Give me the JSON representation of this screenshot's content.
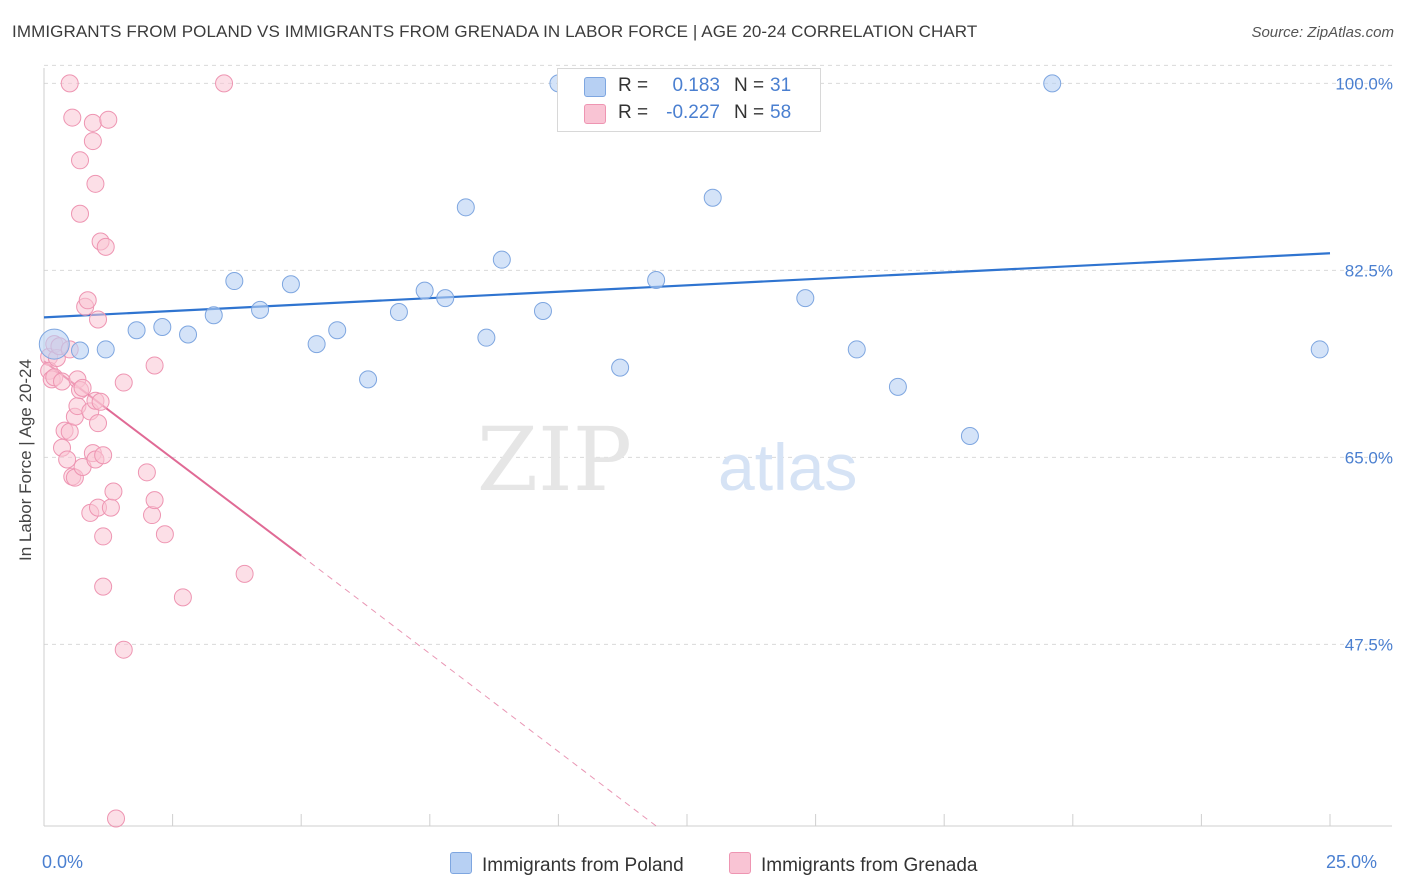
{
  "title": "IMMIGRANTS FROM POLAND VS IMMIGRANTS FROM GRENADA IN LABOR FORCE | AGE 20-24 CORRELATION CHART",
  "source": "Source: ZipAtlas.com",
  "watermark": {
    "zip": "ZIP",
    "atlas": "atlas"
  },
  "colors": {
    "poland_fill": "#b7d0f3",
    "poland_stroke": "#7ea6e0",
    "poland_line": "#2f74d0",
    "grenada_fill": "#f9c4d4",
    "grenada_stroke": "#ee95b2",
    "grenada_line": "#e06a95",
    "tick_text": "#4a7fd0",
    "grid": "#d9d9d9"
  },
  "legend": {
    "rows": [
      {
        "r_label": "R =",
        "r_value": "0.183",
        "n_label": "N =",
        "n_value": "31"
      },
      {
        "r_label": "R =",
        "r_value": "-0.227",
        "n_label": "N =",
        "n_value": "58"
      }
    ]
  },
  "bottom_legend": {
    "poland": "Immigrants from Poland",
    "grenada": "Immigrants from Grenada"
  },
  "x_axis": {
    "min_label": "0.0%",
    "max_label": "25.0%"
  },
  "chart_data": {
    "type": "scatter",
    "title": "IMMIGRANTS FROM POLAND VS IMMIGRANTS FROM GRENADA IN LABOR FORCE | AGE 20-24 CORRELATION CHART",
    "xlabel": "",
    "ylabel": "In Labor Force | Age 20-24",
    "xlim": [
      0,
      25
    ],
    "ylim": [
      30.5,
      102
    ],
    "y_ticks": [
      47.5,
      65.0,
      82.5,
      100.0
    ],
    "y_tick_labels": [
      "47.5%",
      "65.0%",
      "82.5%",
      "100.0%"
    ],
    "x_tick_labels": [
      "0.0%",
      "25.0%"
    ],
    "grid": true,
    "legend_placement": "top-center",
    "series": [
      {
        "name": "Immigrants from Poland",
        "R": 0.183,
        "N": 31,
        "trend": [
          [
            0,
            78.1
          ],
          [
            25,
            84.1
          ]
        ],
        "points": [
          [
            0.2,
            75.6
          ],
          [
            0.7,
            75.0
          ],
          [
            1.2,
            75.1
          ],
          [
            1.8,
            76.9
          ],
          [
            2.3,
            77.2
          ],
          [
            2.8,
            76.5
          ],
          [
            3.3,
            78.3
          ],
          [
            3.7,
            81.5
          ],
          [
            4.2,
            78.8
          ],
          [
            4.8,
            81.2
          ],
          [
            5.3,
            75.6
          ],
          [
            5.7,
            76.9
          ],
          [
            6.3,
            72.3
          ],
          [
            6.9,
            78.6
          ],
          [
            7.4,
            80.6
          ],
          [
            7.8,
            79.9
          ],
          [
            8.2,
            88.4
          ],
          [
            8.6,
            76.2
          ],
          [
            8.9,
            83.5
          ],
          [
            9.7,
            78.7
          ],
          [
            10.0,
            100.0
          ],
          [
            11.2,
            73.4
          ],
          [
            11.9,
            81.6
          ],
          [
            12.0,
            100.0
          ],
          [
            13.0,
            89.3
          ],
          [
            14.8,
            79.9
          ],
          [
            15.8,
            75.1
          ],
          [
            16.6,
            71.6
          ],
          [
            18.0,
            67.0
          ],
          [
            19.6,
            100.0
          ],
          [
            24.8,
            75.1
          ]
        ]
      },
      {
        "name": "Immigrants from Grenada",
        "R": -0.227,
        "N": 58,
        "trend_solid": [
          [
            0,
            74.0
          ],
          [
            5.0,
            55.8
          ]
        ],
        "trend_dashed": [
          [
            5.0,
            55.8
          ],
          [
            11.9,
            30.5
          ]
        ],
        "points": [
          [
            0.1,
            74.4
          ],
          [
            0.1,
            73.1
          ],
          [
            0.15,
            72.3
          ],
          [
            0.2,
            75.6
          ],
          [
            0.2,
            72.5
          ],
          [
            0.25,
            74.3
          ],
          [
            0.3,
            75.4
          ],
          [
            0.35,
            72.1
          ],
          [
            0.35,
            65.9
          ],
          [
            0.4,
            67.5
          ],
          [
            0.45,
            64.8
          ],
          [
            0.5,
            75.1
          ],
          [
            0.5,
            67.4
          ],
          [
            0.55,
            63.2
          ],
          [
            0.6,
            63.1
          ],
          [
            0.6,
            68.8
          ],
          [
            0.65,
            72.3
          ],
          [
            0.65,
            69.8
          ],
          [
            0.7,
            71.3
          ],
          [
            0.75,
            71.5
          ],
          [
            0.75,
            64.1
          ],
          [
            0.8,
            79.1
          ],
          [
            0.85,
            79.7
          ],
          [
            0.9,
            69.3
          ],
          [
            0.9,
            59.8
          ],
          [
            0.5,
            100.0
          ],
          [
            0.55,
            96.8
          ],
          [
            0.7,
            92.8
          ],
          [
            0.7,
            87.8
          ],
          [
            0.95,
            65.4
          ],
          [
            1.0,
            64.8
          ],
          [
            1.05,
            60.3
          ],
          [
            0.95,
            96.3
          ],
          [
            0.95,
            94.6
          ],
          [
            1.0,
            70.3
          ],
          [
            1.05,
            68.2
          ],
          [
            1.05,
            77.9
          ],
          [
            1.1,
            70.2
          ],
          [
            1.0,
            90.6
          ],
          [
            1.1,
            85.2
          ],
          [
            1.15,
            65.2
          ],
          [
            1.15,
            57.6
          ],
          [
            1.15,
            52.9
          ],
          [
            1.2,
            84.7
          ],
          [
            1.25,
            96.6
          ],
          [
            1.3,
            60.3
          ],
          [
            1.35,
            61.8
          ],
          [
            1.4,
            31.2
          ],
          [
            1.55,
            72.0
          ],
          [
            1.55,
            47.0
          ],
          [
            2.0,
            63.6
          ],
          [
            2.1,
            59.6
          ],
          [
            2.15,
            61.0
          ],
          [
            2.15,
            73.6
          ],
          [
            2.35,
            57.8
          ],
          [
            2.7,
            51.9
          ],
          [
            3.5,
            100.0
          ],
          [
            3.9,
            54.1
          ]
        ]
      }
    ]
  }
}
